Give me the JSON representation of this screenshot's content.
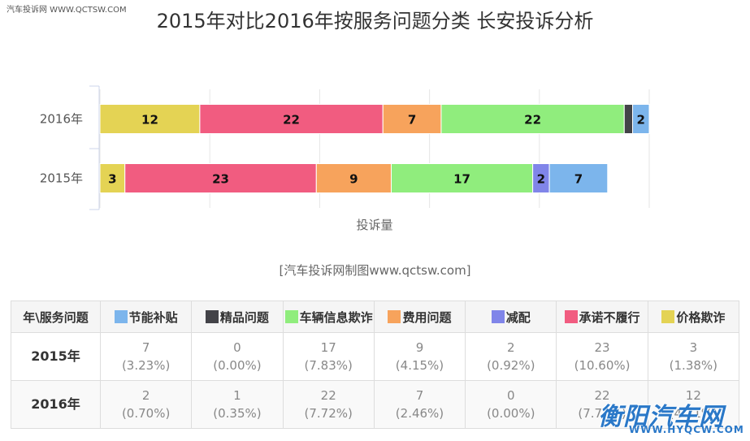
{
  "watermark_top_left": "汽车投诉网  WWW.QCTSW.COM",
  "source_note": "[汽车投诉网制图www.qctsw.com]",
  "watermark_bottom_right": {
    "main": "衡阳汽车网",
    "sub": "WWW.HYQCW.COM"
  },
  "chart_data": {
    "type": "bar",
    "orientation": "horizontal",
    "stacked": true,
    "title": "2015年对比2016年按服务问题分类 长安投诉分析",
    "xlabel": "投诉量",
    "ylabel": "",
    "categories": [
      "2016年",
      "2015年"
    ],
    "series": [
      {
        "name": "价格欺诈",
        "color": "#e4d354",
        "values": [
          12,
          3
        ]
      },
      {
        "name": "承诺不履行",
        "color": "#f15c80",
        "values": [
          22,
          23
        ]
      },
      {
        "name": "费用问题",
        "color": "#f7a35c",
        "values": [
          7,
          9
        ]
      },
      {
        "name": "车辆信息欺诈",
        "color": "#90ed7d",
        "values": [
          22,
          17
        ]
      },
      {
        "name": "减配",
        "color": "#8085e9",
        "values": [
          0,
          2
        ]
      },
      {
        "name": "精品问题",
        "color": "#434348",
        "values": [
          1,
          0
        ]
      },
      {
        "name": "节能补贴",
        "color": "#7cb5ec",
        "values": [
          2,
          7
        ]
      }
    ],
    "xlim": [
      0,
      66
    ],
    "grid": true,
    "legend": "none"
  },
  "table": {
    "corner_header": "年\\服务问题",
    "columns": [
      {
        "label": "节能补贴",
        "color": "#7cb5ec"
      },
      {
        "label": "精品问题",
        "color": "#434348"
      },
      {
        "label": "车辆信息欺诈",
        "color": "#90ed7d"
      },
      {
        "label": "费用问题",
        "color": "#f7a35c"
      },
      {
        "label": "减配",
        "color": "#8085e9"
      },
      {
        "label": "承诺不履行",
        "color": "#f15c80"
      },
      {
        "label": "价格欺诈",
        "color": "#e4d354"
      }
    ],
    "rows": [
      {
        "year": "2015年",
        "cells": [
          {
            "value": "7",
            "pct": "(3.23%)"
          },
          {
            "value": "0",
            "pct": "(0.00%)"
          },
          {
            "value": "17",
            "pct": "(7.83%)"
          },
          {
            "value": "9",
            "pct": "(4.15%)"
          },
          {
            "value": "2",
            "pct": "(0.92%)"
          },
          {
            "value": "23",
            "pct": "(10.60%)"
          },
          {
            "value": "3",
            "pct": "(1.38%)"
          }
        ]
      },
      {
        "year": "2016年",
        "cells": [
          {
            "value": "2",
            "pct": "(0.70%)"
          },
          {
            "value": "1",
            "pct": "(0.35%)"
          },
          {
            "value": "22",
            "pct": "(7.72%)"
          },
          {
            "value": "7",
            "pct": "(2.46%)"
          },
          {
            "value": "0",
            "pct": "(0.00%)"
          },
          {
            "value": "22",
            "pct": "(7.72%)"
          },
          {
            "value": "12",
            "pct": "(4.21%)"
          }
        ]
      }
    ]
  }
}
